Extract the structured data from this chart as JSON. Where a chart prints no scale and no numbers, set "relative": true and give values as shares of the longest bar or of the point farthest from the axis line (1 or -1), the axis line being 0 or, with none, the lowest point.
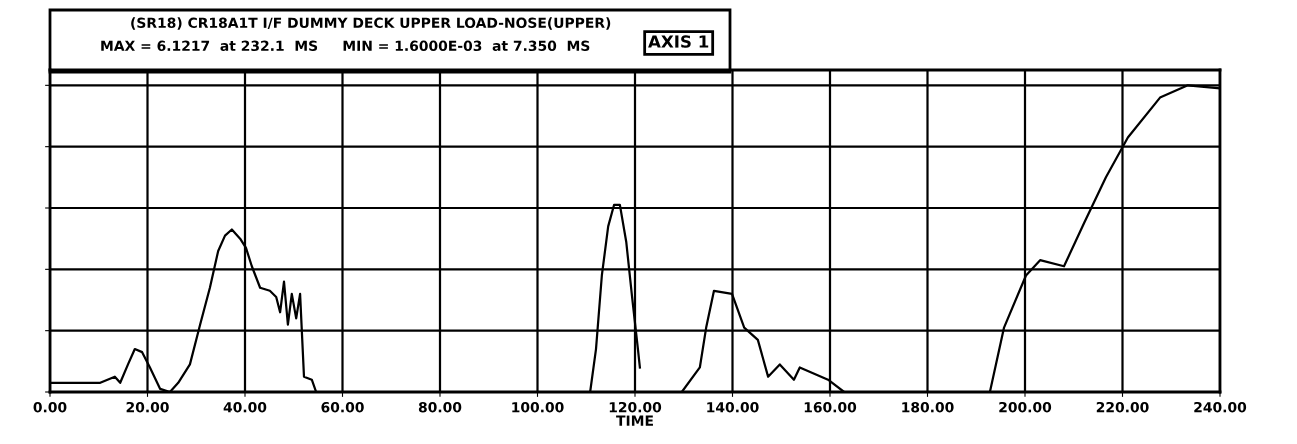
{
  "chart_data": {
    "type": "line",
    "relative": true,
    "title": "(SR18) CR18A1T I/F DUMMY DECK UPPER LOAD-NOSE(UPPER)",
    "subtitle": "MAX = 6.1217  at 232.1  MS     MIN = 1.6000E-03  at 7.350  MS",
    "annotations": [
      "AXIS 1"
    ],
    "xlabel": "TIME",
    "x": [
      0.4,
      10.3,
      13.3,
      14.4,
      16.0,
      17.4,
      18.9,
      20.5,
      22.6,
      24.6,
      26.3,
      28.7,
      30.8,
      32.8,
      34.5,
      35.9,
      37.3,
      39.0,
      40.2,
      41.4,
      43.1,
      45.1,
      46.4,
      47.2,
      48.0,
      48.8,
      49.6,
      50.5,
      51.3,
      52.1,
      53.7,
      54.6,
      80.0,
      110.8,
      112.0,
      113.2,
      114.5,
      115.7,
      116.9,
      118.2,
      119.4,
      120.6,
      121.0,
      125.0,
      129.6,
      133.3,
      134.6,
      136.2,
      139.9,
      142.4,
      145.2,
      147.3,
      149.7,
      152.6,
      153.8,
      159.6,
      162.9,
      166.2,
      180.0,
      192.8,
      195.7,
      200.2,
      203.1,
      208.0,
      212.1,
      216.6,
      221.1,
      227.7,
      233.4,
      240.0
    ],
    "series": [
      {
        "color": "#000000",
        "values": [
          0.03,
          0.03,
          0.05,
          0.03,
          0.09,
          0.14,
          0.13,
          0.08,
          0.01,
          0,
          0.03,
          0.09,
          0.22,
          0.34,
          0.46,
          0.51,
          0.53,
          0.5,
          0.47,
          0.41,
          0.34,
          0.33,
          0.31,
          0.26,
          0.36,
          0.22,
          0.32,
          0.24,
          0.32,
          0.05,
          0.04,
          0,
          null,
          0,
          0.14,
          0.38,
          0.54,
          0.61,
          0.61,
          0.49,
          0.31,
          0.14,
          0.08,
          null,
          0,
          0.08,
          0.21,
          0.33,
          0.32,
          0.21,
          0.17,
          0.05,
          0.09,
          0.04,
          0.08,
          0.04,
          0,
          0,
          null,
          0,
          0.21,
          0.38,
          0.43,
          0.41,
          0.55,
          0.7,
          0.83,
          0.96,
          1.0,
          0.99
        ]
      }
    ],
    "xlim": [
      0,
      240
    ],
    "xticks": [
      {
        "value": 0,
        "label": "0.00"
      },
      {
        "value": 20,
        "label": "20.00"
      },
      {
        "value": 40,
        "label": "40.00"
      },
      {
        "value": 60,
        "label": "60.00"
      },
      {
        "value": 80,
        "label": "80.00"
      },
      {
        "value": 100,
        "label": "100.00"
      },
      {
        "value": 120,
        "label": "120.00"
      },
      {
        "value": 140,
        "label": "140.00"
      },
      {
        "value": 160,
        "label": "160.00"
      },
      {
        "value": 180,
        "label": "180.00"
      },
      {
        "value": 200,
        "label": "200.00"
      },
      {
        "value": 220,
        "label": "220.00"
      },
      {
        "value": 240,
        "label": "240.00"
      }
    ],
    "grid": true,
    "tick_labels": "x",
    "line_style": "solid",
    "marker": "none"
  }
}
